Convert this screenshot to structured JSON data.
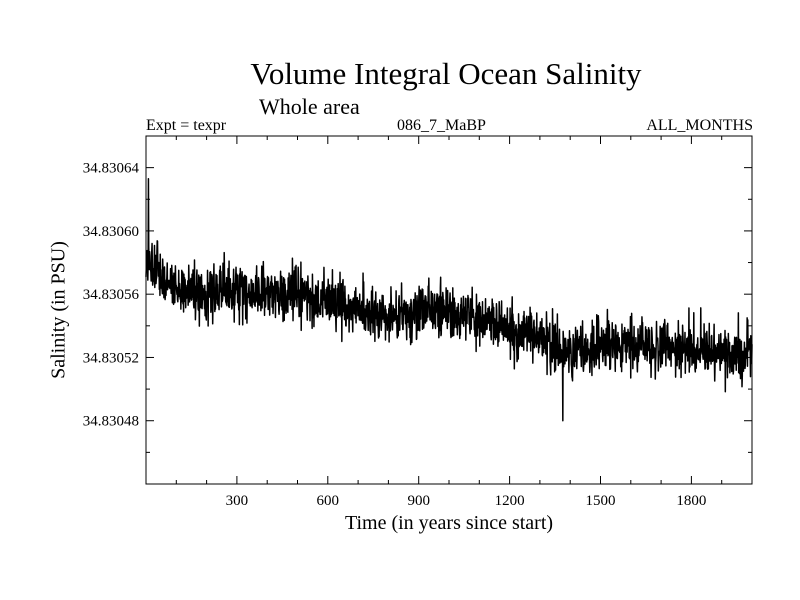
{
  "chart_data": {
    "type": "line",
    "title": "Volume Integral Ocean Salinity",
    "subtitle": "Whole area",
    "annotations": {
      "left": "Expt = texpr",
      "center": "086_7_MaBP",
      "right": "ALL_MONTHS"
    },
    "xlabel": "Time (in years since start)",
    "ylabel": "Salinity (in PSU)",
    "xlim": [
      0,
      2000
    ],
    "ylim": [
      34.83044,
      34.83066
    ],
    "xticks": [
      300,
      600,
      900,
      1200,
      1500,
      1800
    ],
    "xtick_labels": [
      "300",
      "600",
      "900",
      "1200",
      "1500",
      "1800"
    ],
    "yticks": [
      34.83048,
      34.83052,
      34.83056,
      34.8306,
      34.83064
    ],
    "ytick_labels": [
      "34.83048",
      "34.83052",
      "34.83056",
      "34.83060",
      "34.83064"
    ],
    "series": [
      {
        "name": "salinity",
        "trend": [
          [
            0,
            34.83058
          ],
          [
            100,
            34.830562
          ],
          [
            450,
            34.830561
          ],
          [
            800,
            34.830545
          ],
          [
            950,
            34.830552
          ],
          [
            1250,
            34.830535
          ],
          [
            1400,
            34.830525
          ],
          [
            1700,
            34.830527
          ],
          [
            2000,
            34.830521
          ]
        ],
        "noise_amplitude": 2e-05,
        "min": 34.83048,
        "max": 34.830633,
        "n_points": 2000
      }
    ]
  }
}
